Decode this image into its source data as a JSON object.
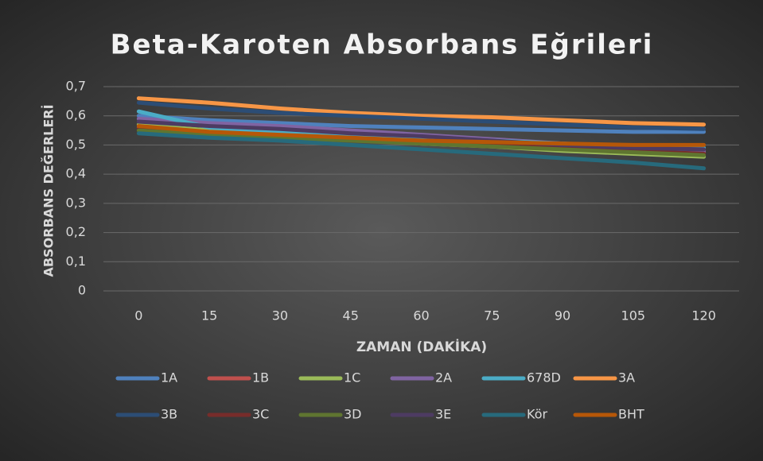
{
  "chart_data": {
    "type": "line",
    "title": "Beta-Karoten Absorbans Eğrileri",
    "x_label": "ZAMAN (DAKİKA)",
    "y_label": "ABSORBANS DEĞERLERİ",
    "categories": [
      "0",
      "15",
      "30",
      "45",
      "60",
      "75",
      "90",
      "105",
      "120"
    ],
    "ylim": [
      0,
      0.7
    ],
    "yticks": [
      0,
      {
        "value": 0.1,
        "label": "0,1"
      },
      {
        "value": 0.2,
        "label": "0,2"
      },
      {
        "value": 0.3,
        "label": "0,3"
      },
      {
        "value": 0.4,
        "label": "0,4"
      },
      {
        "value": 0.5,
        "label": "0,5"
      },
      {
        "value": 0.6,
        "label": "0,6"
      },
      {
        "value": 0.7,
        "label": "0,7"
      }
    ],
    "grid": true,
    "legend": "bottom",
    "series": [
      {
        "name": "1A",
        "color": "#4f81bd",
        "values": [
          0.6,
          0.585,
          0.575,
          0.565,
          0.56,
          0.555,
          0.55,
          0.545,
          0.545
        ]
      },
      {
        "name": "1B",
        "color": "#c0504d",
        "values": [
          0.56,
          0.545,
          0.535,
          0.52,
          0.51,
          0.5,
          0.49,
          0.48,
          0.475
        ]
      },
      {
        "name": "1C",
        "color": "#9bbb59",
        "values": [
          0.57,
          0.55,
          0.535,
          0.52,
          0.505,
          0.495,
          0.48,
          0.47,
          0.46
        ]
      },
      {
        "name": "2A",
        "color": "#8064a2",
        "values": [
          0.59,
          0.575,
          0.565,
          0.55,
          0.535,
          0.52,
          0.505,
          0.49,
          0.48
        ]
      },
      {
        "name": "678D",
        "color": "#4bacc6",
        "values": [
          0.615,
          0.56,
          0.545,
          0.535,
          0.525,
          0.515,
          0.505,
          0.495,
          0.49
        ]
      },
      {
        "name": "3A",
        "color": "#f79646",
        "values": [
          0.66,
          0.645,
          0.625,
          0.61,
          0.6,
          0.595,
          0.585,
          0.575,
          0.57
        ]
      },
      {
        "name": "3B",
        "color": "#2c4d75",
        "values": [
          0.645,
          0.625,
          0.61,
          0.6,
          0.59,
          0.58,
          0.57,
          0.56,
          0.555
        ]
      },
      {
        "name": "3C",
        "color": "#772c2a",
        "values": [
          0.555,
          0.54,
          0.53,
          0.52,
          0.51,
          0.5,
          0.49,
          0.48,
          0.47
        ]
      },
      {
        "name": "3D",
        "color": "#5f7530",
        "values": [
          0.55,
          0.535,
          0.525,
          0.515,
          0.505,
          0.495,
          0.485,
          0.475,
          0.465
        ]
      },
      {
        "name": "3E",
        "color": "#4d3b62",
        "values": [
          0.58,
          0.565,
          0.555,
          0.54,
          0.53,
          0.515,
          0.5,
          0.49,
          0.485
        ]
      },
      {
        "name": "Kör",
        "color": "#276a7c",
        "values": [
          0.54,
          0.525,
          0.515,
          0.5,
          0.485,
          0.47,
          0.455,
          0.44,
          0.42
        ]
      },
      {
        "name": "BHT",
        "color": "#b65708",
        "values": [
          0.565,
          0.545,
          0.535,
          0.525,
          0.515,
          0.51,
          0.505,
          0.5,
          0.5
        ]
      }
    ]
  }
}
